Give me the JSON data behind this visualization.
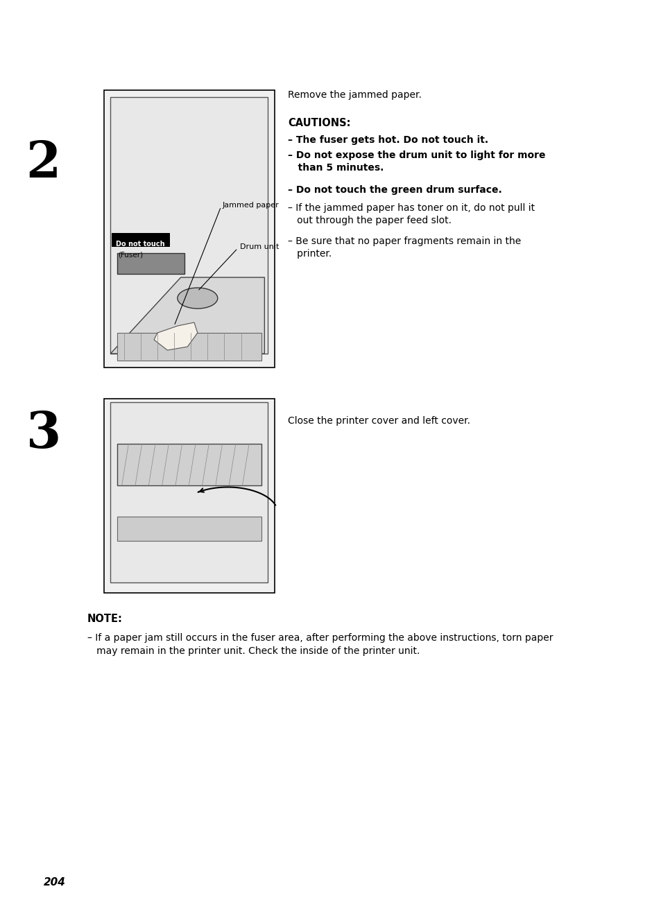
{
  "background_color": "#ffffff",
  "page_number": "204",
  "step2": {
    "number": "2",
    "instruction": "Remove the jammed paper.",
    "cautions_header": "CAUTIONS:",
    "cautions_bold": [
      "– The fuser gets hot. Do not touch it.",
      "– Do not expose the drum unit to light for more\n   than 5 minutes.",
      "– Do not touch the green drum surface."
    ],
    "cautions_normal": [
      "– If the jammed paper has toner on it, do not pull it\n   out through the paper feed slot.",
      "– Be sure that no paper fragments remain in the\n   printer."
    ],
    "image_labels": {
      "jammed_paper": "Jammed paper",
      "do_not_touch": "Do not touch",
      "fuser": "(Fuser)",
      "drum_unit": "Drum unit"
    }
  },
  "step3": {
    "number": "3",
    "instruction": "Close the printer cover and left cover."
  },
  "note": {
    "header": "NOTE:",
    "text": "– If a paper jam still occurs in the fuser area, after performing the above instructions, torn paper\n   may remain in the printer unit. Check the inside of the printer unit."
  }
}
